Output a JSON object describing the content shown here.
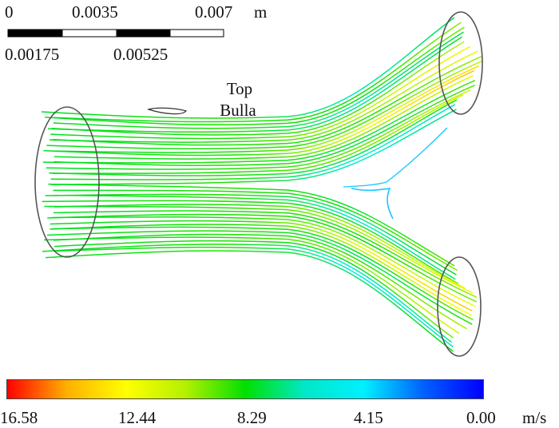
{
  "scale_bar": {
    "tick_labels_top": [
      "0",
      "0.0035",
      "0.007"
    ],
    "unit": "m",
    "tick_labels_bottom": [
      "0.00175",
      "0.00525"
    ]
  },
  "annotation": {
    "line1": "Top",
    "line2": "Bulla"
  },
  "legend": {
    "tick_labels": [
      "16.58",
      "12.44",
      "8.29",
      "4.15",
      "0.00"
    ],
    "unit": "m/s",
    "colors": [
      "#ff0000",
      "#ffb000",
      "#ffff00",
      "#b4f000",
      "#00e000",
      "#00e8c8",
      "#00f0ff",
      "#0060ff",
      "#0000ff"
    ]
  }
}
